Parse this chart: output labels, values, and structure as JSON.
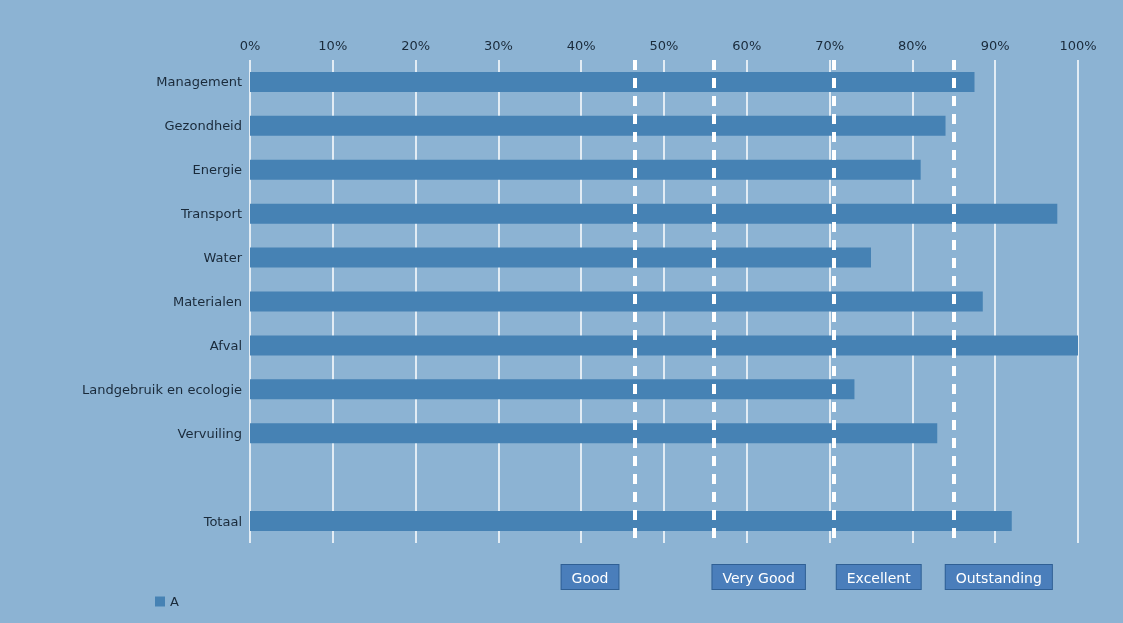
{
  "chart_data": {
    "type": "bar",
    "orientation": "horizontal",
    "categories": [
      "Management",
      "Gezondheid",
      "Energie",
      "Transport",
      "Water",
      "Materialen",
      "Afval",
      "Landgebruik en ecologie",
      "Vervuiling",
      null,
      "Totaal"
    ],
    "series": [
      {
        "name": "A",
        "color": "#4682b4",
        "values": [
          87.5,
          84,
          81,
          97.5,
          75,
          88.5,
          100,
          73,
          83,
          null,
          92
        ]
      }
    ],
    "xlim": [
      0,
      100
    ],
    "xticks": [
      {
        "value": 0,
        "label": "0%"
      },
      {
        "value": 10,
        "label": "10%"
      },
      {
        "value": 20,
        "label": "20%"
      },
      {
        "value": 30,
        "label": "30%"
      },
      {
        "value": 40,
        "label": "40%"
      },
      {
        "value": 50,
        "label": "50%"
      },
      {
        "value": 60,
        "label": "60%"
      },
      {
        "value": 70,
        "label": "70%"
      },
      {
        "value": 80,
        "label": "80%"
      },
      {
        "value": 90,
        "label": "90%"
      },
      {
        "value": 100,
        "label": "100%"
      }
    ],
    "grid": "x",
    "legend": "bottom left",
    "ref_lines": [
      {
        "axis": "x",
        "value": 46.5,
        "label": "Good",
        "color": "#ffffff",
        "line_style": "dashed"
      },
      {
        "axis": "x",
        "value": 56,
        "label": "Very Good",
        "color": "#ffffff",
        "line_style": "dashed"
      },
      {
        "axis": "x",
        "value": 70.5,
        "label": "Excellent",
        "color": "#ffffff",
        "line_style": "dashed"
      },
      {
        "axis": "x",
        "value": 85,
        "label": "Outstanding",
        "color": "#ffffff",
        "line_style": "dashed"
      }
    ]
  }
}
